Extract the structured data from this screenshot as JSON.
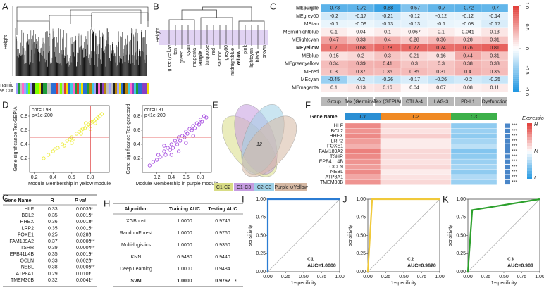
{
  "panel_labels": [
    "A",
    "B",
    "C",
    "D",
    "E",
    "F",
    "G",
    "H",
    "I",
    "J",
    "K"
  ],
  "panel_a": {
    "y_label": "Height",
    "track_label": [
      "Dynamic",
      "Tree Cut"
    ]
  },
  "panel_b": {
    "y_label": "Height",
    "leaves": [
      "greenyellow",
      "tan",
      "green",
      "cyan",
      "magenta",
      "Purple",
      "turquoise",
      "red",
      "salmon",
      "grey60",
      "midnightblue",
      "Yellow",
      "pink",
      "lightcyan",
      "black",
      "brown"
    ]
  },
  "panel_c": {
    "rows": [
      "MEpurple",
      "MEgrey60",
      "MEtan",
      "MEmidnightblue",
      "MElightcyan",
      "MEyellow",
      "MEblue",
      "MEgreenyellow",
      "MEred",
      "MEcyan",
      "MEmagenta"
    ],
    "highlight_rows": [
      0,
      5
    ],
    "highlight_colors": [
      "#7b3fbf",
      "#c9b400"
    ],
    "columns": [
      "Group",
      "Tex (Germinal)",
      "Tex (GEPIA)",
      "CTLA-4",
      "LAG-3",
      "PD-L1",
      "Dysfunction"
    ],
    "values": [
      [
        -0.73,
        -0.72,
        -0.88,
        -0.57,
        -0.7,
        -0.72,
        -0.7
      ],
      [
        -0.2,
        -0.17,
        -0.21,
        -0.12,
        -0.12,
        -0.12,
        -0.14
      ],
      [
        -0.1,
        -0.09,
        -0.13,
        -0.13,
        -0.1,
        -0.08,
        -0.17
      ],
      [
        0.1,
        0.04,
        0.1,
        0.067,
        0.1,
        0.041,
        0.13
      ],
      [
        0.47,
        0.33,
        0.4,
        0.28,
        0.36,
        0.28,
        0.31
      ],
      [
        0.7,
        0.68,
        0.78,
        0.77,
        0.74,
        0.76,
        0.81
      ],
      [
        0.15,
        0.2,
        0.3,
        0.21,
        0.16,
        0.44,
        0.31
      ],
      [
        0.34,
        0.39,
        0.41,
        0.3,
        0.3,
        0.38,
        0.33
      ],
      [
        0.3,
        0.37,
        0.35,
        0.35,
        0.31,
        0.4,
        0.35
      ],
      [
        -0.45,
        -0.2,
        -0.26,
        -0.17,
        -0.26,
        -0.2,
        -0.25
      ],
      [
        0.1,
        0.13,
        0.16,
        0.04,
        0.07,
        0.08,
        0.11
      ]
    ],
    "colorbar_ticks": [
      {
        "value": -1,
        "label": "-1.0"
      },
      {
        "value": -0.5,
        "label": "-0.5"
      },
      0,
      0.5,
      {
        "value": 1,
        "label": "1.0"
      }
    ]
  },
  "panel_d": {
    "plots": [
      {
        "annotation": [
          "cor=0.93",
          "p<1e-200"
        ],
        "y_label": "Gene significance Tex-GEPIA",
        "x_label": "Module Membership in yellow module",
        "color": "#eded3a",
        "xlim": [
          0.15,
          1.0
        ],
        "ylim": [
          0.0,
          0.95
        ],
        "xticks": [
          0.2,
          0.4,
          0.6,
          0.8
        ],
        "yticks": [
          0.2,
          0.4,
          0.6,
          0.8
        ],
        "threshold_x": 0.8,
        "threshold_y": 0.5,
        "x": [
          0.3,
          0.35,
          0.4,
          0.42,
          0.45,
          0.5,
          0.52,
          0.55,
          0.58,
          0.6,
          0.62,
          0.65,
          0.68,
          0.7,
          0.72,
          0.74,
          0.76,
          0.78,
          0.8,
          0.82,
          0.84,
          0.86,
          0.88,
          0.9,
          0.92,
          0.6,
          0.7,
          0.8,
          0.85,
          0.75
        ],
        "y": [
          0.2,
          0.25,
          0.3,
          0.33,
          0.35,
          0.4,
          0.38,
          0.45,
          0.47,
          0.5,
          0.48,
          0.55,
          0.58,
          0.6,
          0.62,
          0.63,
          0.66,
          0.68,
          0.7,
          0.72,
          0.73,
          0.76,
          0.78,
          0.8,
          0.83,
          0.42,
          0.55,
          0.62,
          0.7,
          0.7
        ]
      },
      {
        "annotation": [
          "cor=0.81",
          "p<1e-200"
        ],
        "y_label": "Gene significance Tex-genecard",
        "x_label": "Module Membership in purple module",
        "color": "#a64ee0",
        "xlim": [
          0.0,
          0.95
        ],
        "ylim": [
          0.0,
          0.95
        ],
        "xticks": [
          0.2,
          0.4,
          0.6,
          0.8
        ],
        "yticks": [
          0.2,
          0.4,
          0.6,
          0.8
        ],
        "threshold_x": 0.78,
        "threshold_y": 0.5,
        "x": [
          0.1,
          0.15,
          0.2,
          0.22,
          0.25,
          0.3,
          0.32,
          0.35,
          0.38,
          0.4,
          0.42,
          0.45,
          0.48,
          0.5,
          0.52,
          0.55,
          0.58,
          0.6,
          0.62,
          0.65,
          0.68,
          0.7,
          0.72,
          0.75,
          0.78,
          0.8,
          0.82,
          0.85,
          0.88,
          0.5,
          0.6,
          0.7,
          0.4,
          0.3
        ],
        "y": [
          0.1,
          0.15,
          0.18,
          0.25,
          0.22,
          0.3,
          0.25,
          0.35,
          0.32,
          0.4,
          0.35,
          0.45,
          0.4,
          0.5,
          0.45,
          0.52,
          0.5,
          0.58,
          0.55,
          0.62,
          0.6,
          0.66,
          0.63,
          0.7,
          0.68,
          0.75,
          0.72,
          0.8,
          0.78,
          0.3,
          0.42,
          0.52,
          0.25,
          0.38
        ]
      }
    ]
  },
  "panel_e": {
    "sets": [
      "C1-C2",
      "C1-C3",
      "C2-C3",
      "Purple ∪Yellow"
    ],
    "colors": [
      "#d8dc85",
      "#c59be0",
      "#9fd0e6",
      "#d5b8a3"
    ],
    "intersection": 12
  },
  "panel_f": {
    "header": "Gene Name",
    "clusters": [
      "C1",
      "C2",
      "C3"
    ],
    "cluster_colors": [
      "#2a8fd4",
      "#f08a24",
      "#3db04a"
    ],
    "genes": [
      "HLF",
      "BCL2",
      "HHEX",
      "LRP2",
      "FOXE1",
      "FAM189A2",
      "TSHR",
      "EPB41L4B",
      "OCLN",
      "NEBL",
      "ATP8A1",
      "TMEM30B"
    ],
    "values": [
      [
        0.6,
        0.2,
        -0.5
      ],
      [
        0.55,
        0.15,
        -0.45
      ],
      [
        0.6,
        0.25,
        -0.5
      ],
      [
        0.5,
        0.1,
        -0.4
      ],
      [
        0.4,
        0.1,
        -0.3
      ],
      [
        0.65,
        0.2,
        -0.55
      ],
      [
        0.6,
        0.2,
        -0.5
      ],
      [
        0.55,
        0.15,
        -0.45
      ],
      [
        0.5,
        0.2,
        -0.4
      ],
      [
        0.6,
        0.1,
        -0.5
      ],
      [
        0.45,
        0.15,
        -0.35
      ],
      [
        0.55,
        0.2,
        -0.45
      ]
    ],
    "significance": [
      "***",
      "***",
      "***",
      "***",
      "***",
      "***",
      "***",
      "***",
      "***",
      "***",
      "***",
      "***"
    ],
    "legend_title": "Expression",
    "legend_labels": [
      "H",
      "M",
      "L"
    ]
  },
  "panel_g": {
    "columns": [
      "Gene Name",
      "R",
      "P val"
    ],
    "rows": [
      [
        "HLF",
        "0.33",
        "0.0036",
        "**"
      ],
      [
        "BCL2",
        "0.35",
        "0.0016",
        "**"
      ],
      [
        "HHEX",
        "0.36",
        "0.0013",
        "**"
      ],
      [
        "LRP2",
        "0.35",
        "0.0015",
        "**"
      ],
      [
        "FOXE1",
        "0.25",
        "0.0288",
        "*"
      ],
      [
        "FAM189A2",
        "0.37",
        "0.0008",
        "***"
      ],
      [
        "TSHR",
        "0.39",
        "0.0004",
        "***"
      ],
      [
        "EPB41L4B",
        "0.35",
        "0.0019",
        "**"
      ],
      [
        "OCLN",
        "0.33",
        "0.0028",
        "**"
      ],
      [
        "NEBL",
        "0.38",
        "0.0005",
        "***"
      ],
      [
        "ATP8A1",
        "0.29",
        "0.0101",
        "*"
      ],
      [
        "TMEM30B",
        "0.32",
        "0.0041",
        "**"
      ]
    ]
  },
  "panel_h": {
    "columns": [
      "Algorithm",
      "Training AUC",
      "Testing AUC"
    ],
    "rows": [
      [
        "XGBoost",
        "1.0000",
        "0.9746"
      ],
      [
        "RandomForest",
        "1.0000",
        "0.9760"
      ],
      [
        "Multi-logistics",
        "1.0000",
        "0.9350"
      ],
      [
        "KNN",
        "0.9480",
        "0.9440"
      ],
      [
        "Deep Learning",
        "1.0000",
        "0.9484"
      ],
      [
        "SVM",
        "1.0000",
        "0.9762"
      ]
    ],
    "highlight_row": 5,
    "marker": "*"
  },
  "panel_roc": {
    "x_label": "1-specificity",
    "y_label": "sensitivity",
    "ticks": [
      {
        "value": 0,
        "label": "0.00"
      },
      {
        "value": 0.25,
        "label": "0.25"
      },
      {
        "value": 0.5,
        "label": "0.50"
      },
      {
        "value": 0.75,
        "label": "0.75"
      },
      {
        "value": 1,
        "label": "1.00"
      }
    ],
    "curves": [
      {
        "cluster": "C1",
        "auc_label": "AUC=1.0000",
        "color": "#2b7cd3",
        "fpr": [
          0,
          0,
          1
        ],
        "tpr": [
          0,
          1,
          1
        ]
      },
      {
        "cluster": "C2",
        "auc_label": "AUC=0.9620",
        "color": "#f0c93a",
        "fpr": [
          0,
          0.06,
          1
        ],
        "tpr": [
          0,
          1,
          1
        ]
      },
      {
        "cluster": "C3",
        "auc_label": "AUC=0.903",
        "color": "#2ca02c",
        "fpr": [
          0,
          0.06,
          1
        ],
        "tpr": [
          0,
          0.85,
          1
        ]
      }
    ]
  }
}
